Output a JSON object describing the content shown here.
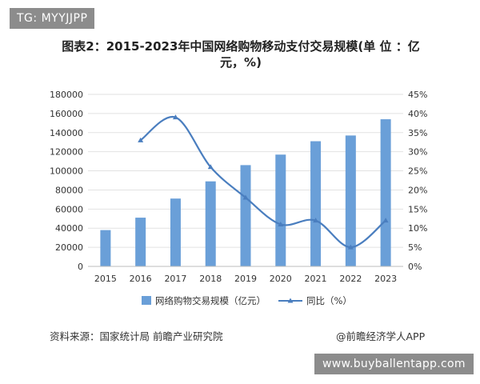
{
  "top_badge": "TG: MYYJJPP",
  "bottom_badge": "www.buyballentapp.com",
  "source": "资料来源：国家统计局 前瞻产业研究院",
  "credit": "@前瞻经济学人APP",
  "chart_data": {
    "type": "bar+line",
    "title": "图表2：2015-2023年中国网络购物移动支付交易规模(单 位 ：亿元，%)",
    "categories": [
      "2015",
      "2016",
      "2017",
      "2018",
      "2019",
      "2020",
      "2021",
      "2022",
      "2023"
    ],
    "series": [
      {
        "name": "网络购物交易规模（亿元）",
        "kind": "bar",
        "axis": "left",
        "color": "#6a9fd8",
        "values": [
          38000,
          51000,
          71000,
          89000,
          106000,
          117000,
          131000,
          137000,
          154000
        ]
      },
      {
        "name": "同比（%）",
        "kind": "line",
        "axis": "right",
        "color": "#4a7ebf",
        "values": [
          null,
          33,
          39,
          26,
          18,
          11,
          12,
          5,
          12
        ]
      }
    ],
    "y_left": {
      "min": 0,
      "max": 180000,
      "ticks": [
        "0",
        "20000",
        "40000",
        "60000",
        "80000",
        "100000",
        "120000",
        "140000",
        "160000",
        "180000"
      ]
    },
    "y_right": {
      "min": 0,
      "max": 45,
      "ticks": [
        "0%",
        "5%",
        "10%",
        "15%",
        "20%",
        "25%",
        "30%",
        "35%",
        "40%",
        "45%"
      ]
    },
    "grid": true,
    "legend": "bottom"
  }
}
